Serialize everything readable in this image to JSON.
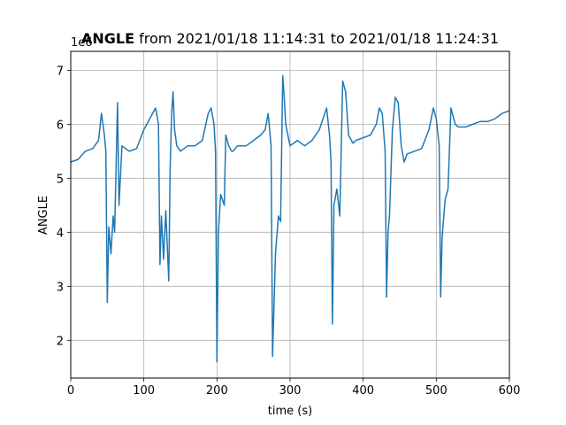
{
  "chart_data": {
    "type": "line",
    "title_bold": "ANGLE",
    "title_rest": " from 2021/01/18 11:14:31 to 2021/01/18 11:24:31",
    "xlabel": "time (s)",
    "ylabel": "ANGLE",
    "y_offset_label": "1e6",
    "xlim": [
      0,
      600
    ],
    "ylim": [
      1.3,
      7.35
    ],
    "xticks": [
      0,
      100,
      200,
      300,
      400,
      500,
      600
    ],
    "yticks": [
      2,
      3,
      4,
      5,
      6,
      7
    ],
    "grid": true,
    "series": [
      {
        "color": "#1f77b4",
        "x": [
          0,
          10,
          20,
          30,
          38,
          42,
          46,
          48,
          50,
          52,
          55,
          58,
          60,
          64,
          66,
          70,
          80,
          90,
          100,
          108,
          112,
          116,
          120,
          122,
          124,
          127,
          130,
          134,
          136,
          138,
          140,
          142,
          145,
          150,
          160,
          170,
          180,
          188,
          192,
          196,
          198,
          200,
          202,
          205,
          210,
          212,
          216,
          220,
          222,
          228,
          240,
          250,
          260,
          266,
          270,
          272,
          274,
          276,
          280,
          284,
          287,
          290,
          292,
          294,
          300,
          310,
          320,
          330,
          340,
          345,
          350,
          354,
          356,
          358,
          360,
          364,
          368,
          372,
          376,
          380,
          386,
          390,
          400,
          410,
          418,
          422,
          426,
          430,
          432,
          434,
          436,
          440,
          444,
          448,
          452,
          456,
          460,
          470,
          480,
          490,
          496,
          500,
          504,
          506,
          508,
          512,
          516,
          520,
          526,
          530,
          540,
          550,
          560,
          570,
          580,
          590,
          600
        ],
        "y": [
          5.3,
          5.35,
          5.5,
          5.55,
          5.7,
          6.2,
          5.8,
          5.5,
          2.7,
          4.1,
          3.6,
          4.3,
          4.0,
          6.4,
          4.5,
          5.6,
          5.5,
          5.55,
          5.9,
          6.1,
          6.2,
          6.3,
          6.0,
          3.4,
          4.3,
          3.5,
          4.4,
          3.1,
          5.2,
          6.2,
          6.6,
          5.9,
          5.6,
          5.5,
          5.6,
          5.6,
          5.7,
          6.2,
          6.3,
          6.0,
          5.5,
          1.6,
          4.0,
          4.7,
          4.5,
          5.8,
          5.6,
          5.5,
          5.5,
          5.6,
          5.6,
          5.7,
          5.8,
          5.9,
          6.2,
          5.9,
          5.6,
          1.7,
          3.6,
          4.3,
          4.2,
          6.9,
          6.5,
          6.0,
          5.6,
          5.7,
          5.6,
          5.7,
          5.9,
          6.1,
          6.3,
          5.8,
          5.3,
          2.3,
          4.5,
          4.8,
          4.3,
          6.8,
          6.6,
          5.8,
          5.65,
          5.7,
          5.75,
          5.8,
          6.0,
          6.3,
          6.2,
          5.5,
          2.8,
          4.0,
          4.3,
          5.9,
          6.5,
          6.4,
          5.6,
          5.3,
          5.45,
          5.5,
          5.55,
          5.9,
          6.3,
          6.1,
          5.6,
          2.8,
          3.9,
          4.6,
          4.8,
          6.3,
          6.0,
          5.95,
          5.95,
          6.0,
          6.05,
          6.05,
          6.1,
          6.2,
          6.25
        ]
      }
    ]
  }
}
